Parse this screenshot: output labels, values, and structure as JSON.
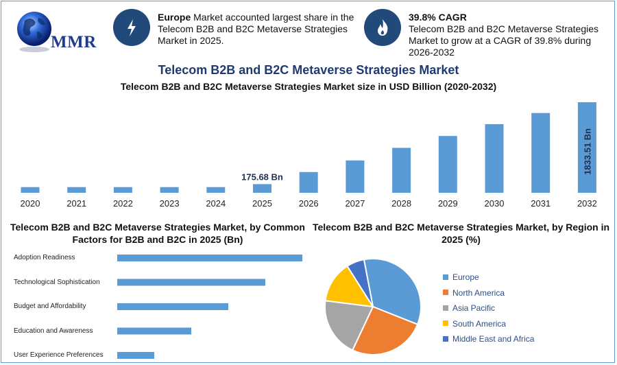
{
  "brand": {
    "logo_text": "MMR"
  },
  "info_cards": [
    {
      "icon": "lightning-icon",
      "bold": "Europe",
      "text": " Market accounted largest share in the Telecom B2B and B2C Metaverse Strategies Market in 2025."
    },
    {
      "icon": "flame-icon",
      "bold": "39.8% CAGR",
      "text": "Telecom B2B and B2C Metaverse Strategies Market to grow at a CAGR of 39.8% during 2026-2032"
    }
  ],
  "header": {
    "title": "Telecom B2B and B2C Metaverse Strategies Market",
    "subtitle": "Telecom B2B and B2C Metaverse Strategies Market size in USD Billion (2020-2032)"
  },
  "colors": {
    "bar": "#5b9bd5",
    "title": "#1f3a6e",
    "icon_bg": "#21497a"
  },
  "chart_data": [
    {
      "type": "bar",
      "title": "Telecom B2B and B2C Metaverse Strategies Market size in USD Billion (2020-2032)",
      "categories": [
        "2020",
        "2021",
        "2022",
        "2023",
        "2024",
        "2025",
        "2026",
        "2027",
        "2028",
        "2029",
        "2030",
        "2031",
        "2032"
      ],
      "values": [
        115,
        115,
        115,
        115,
        115,
        175.68,
        420,
        655,
        910,
        1150,
        1390,
        1615,
        1833.51
      ],
      "data_labels": {
        "2025": "175.68 Bn",
        "2032": "1833.51 Bn"
      },
      "ylim": [
        0,
        1900
      ]
    },
    {
      "type": "bar",
      "orientation": "horizontal",
      "title": "Telecom B2B and B2C Metaverse Strategies Market, by Common Factors for B2B and B2C in 2025 (Bn)",
      "categories": [
        "Adoption Readiness",
        "Technological Sophistication",
        "Budget and Affordability",
        "Education and Awareness",
        "User Experience Preferences"
      ],
      "values": [
        100,
        80,
        60,
        40,
        20
      ]
    },
    {
      "type": "pie",
      "title": "Telecom B2B and B2C Metaverse Strategies Market, by Region in 2025 (%)",
      "labels": [
        "Europe",
        "North America",
        "Asia Pacific",
        "South America",
        "Middle East and Africa"
      ],
      "values": [
        34,
        26,
        20,
        14,
        6
      ],
      "colors": [
        "#5b9bd5",
        "#ed7d31",
        "#a5a5a5",
        "#ffc000",
        "#4472c4"
      ]
    }
  ]
}
